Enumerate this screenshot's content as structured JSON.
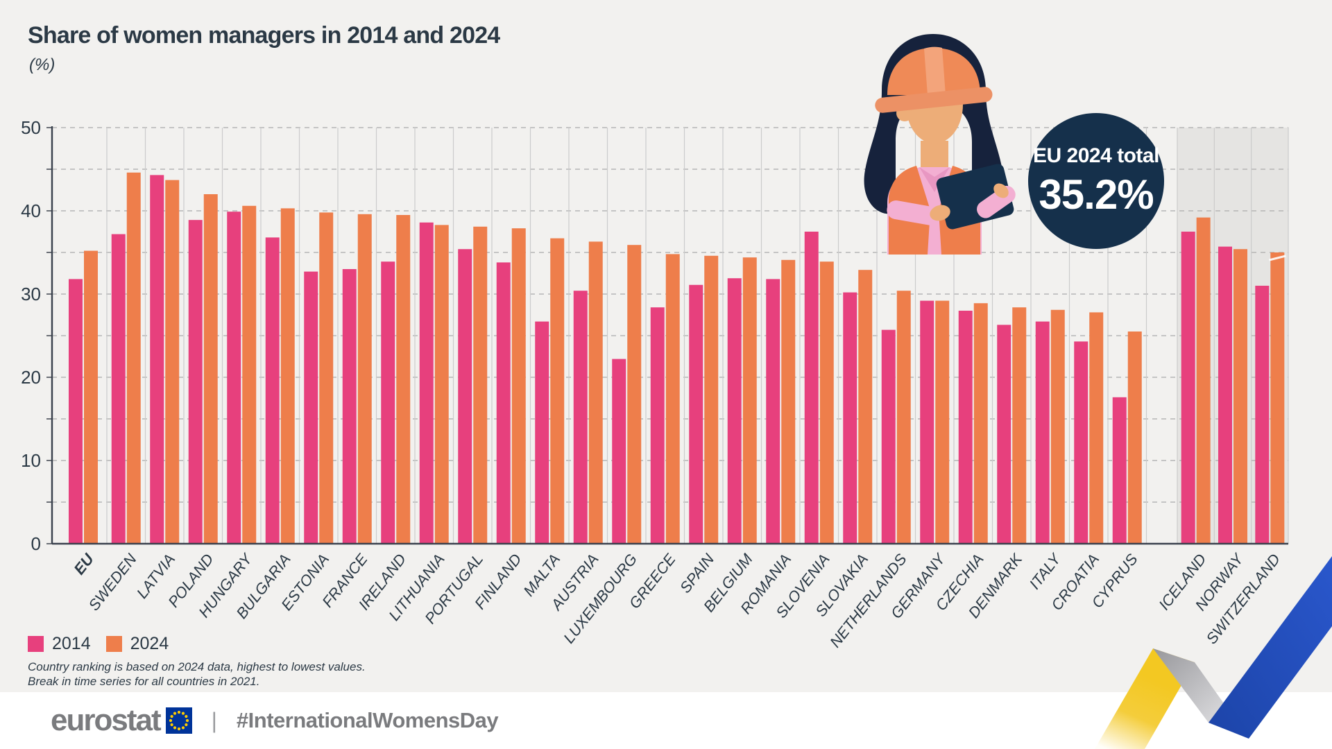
{
  "title": "Share of women managers in 2014 and 2024",
  "subtitle": "(%)",
  "badge": {
    "label": "EU 2024 total",
    "value": "35.2%"
  },
  "legend": [
    {
      "label": "2014",
      "color": "#E7407D"
    },
    {
      "label": "2024",
      "color": "#EE7E4B"
    }
  ],
  "footnotes": [
    "Country ranking is based on 2024 data, highest to lowest values.",
    "Break in time series for all countries in 2021."
  ],
  "footer": {
    "logo_text": "eurostat",
    "divider": "|",
    "hashtag": "#InternationalWomensDay"
  },
  "colors": {
    "series_2014": "#E7407D",
    "series_2024": "#EE7E4B",
    "navy": "#15304B",
    "axis": "#3A414D",
    "grid_dashed": "#B5B5B5",
    "grid_vertical": "#CBCBCB",
    "efta_panel": "#E5E4E2",
    "eu_flag_blue": "#003399",
    "eu_flag_stars": "#FFCC00",
    "ribbon_yellow": "#F3C822",
    "ribbon_blue": "#2A57CC"
  },
  "chart_data": {
    "type": "bar",
    "title": "Share of women managers in 2014 and 2024",
    "xlabel": "",
    "ylabel": "(%)",
    "ylim": [
      0,
      50
    ],
    "yticks": [
      0,
      10,
      20,
      30,
      40,
      50
    ],
    "grid": "horizontal dashed every 5 units; vertical solid column separators",
    "legend_position": "bottom-left",
    "notes": "EU aggregate shown separately at left; Iceland, Norway, Switzerland shown on shaded panel at right",
    "categories": [
      "EU",
      "SWEDEN",
      "LATVIA",
      "POLAND",
      "HUNGARY",
      "BULGARIA",
      "ESTONIA",
      "FRANCE",
      "IRELAND",
      "LITHUANIA",
      "PORTUGAL",
      "FINLAND",
      "MALTA",
      "AUSTRIA",
      "LUXEMBOURG",
      "GREECE",
      "SPAIN",
      "BELGIUM",
      "ROMANIA",
      "SLOVENIA",
      "SLOVAKIA",
      "NETHERLANDS",
      "GERMANY",
      "CZECHIA",
      "DENMARK",
      "ITALY",
      "CROATIA",
      "CYPRUS",
      "ICELAND",
      "NORWAY",
      "SWITZERLAND"
    ],
    "series": [
      {
        "name": "2014",
        "values": [
          31.8,
          37.2,
          44.3,
          38.9,
          39.9,
          36.8,
          32.7,
          33.0,
          33.9,
          38.6,
          35.4,
          33.8,
          26.7,
          30.4,
          22.2,
          28.4,
          31.1,
          31.9,
          31.8,
          37.5,
          30.2,
          25.7,
          29.2,
          28.0,
          26.3,
          26.7,
          24.3,
          17.6,
          37.5,
          35.7,
          31.0
        ]
      },
      {
        "name": "2024",
        "values": [
          35.2,
          44.6,
          43.7,
          42.0,
          40.6,
          40.3,
          39.8,
          39.6,
          39.5,
          38.3,
          38.1,
          37.9,
          36.7,
          36.3,
          35.9,
          34.8,
          34.6,
          34.4,
          34.1,
          33.9,
          32.9,
          30.4,
          29.2,
          28.9,
          28.4,
          28.1,
          27.8,
          25.5,
          39.2,
          35.4,
          35.0
        ]
      }
    ],
    "eu_total_2024": "35.2%"
  }
}
